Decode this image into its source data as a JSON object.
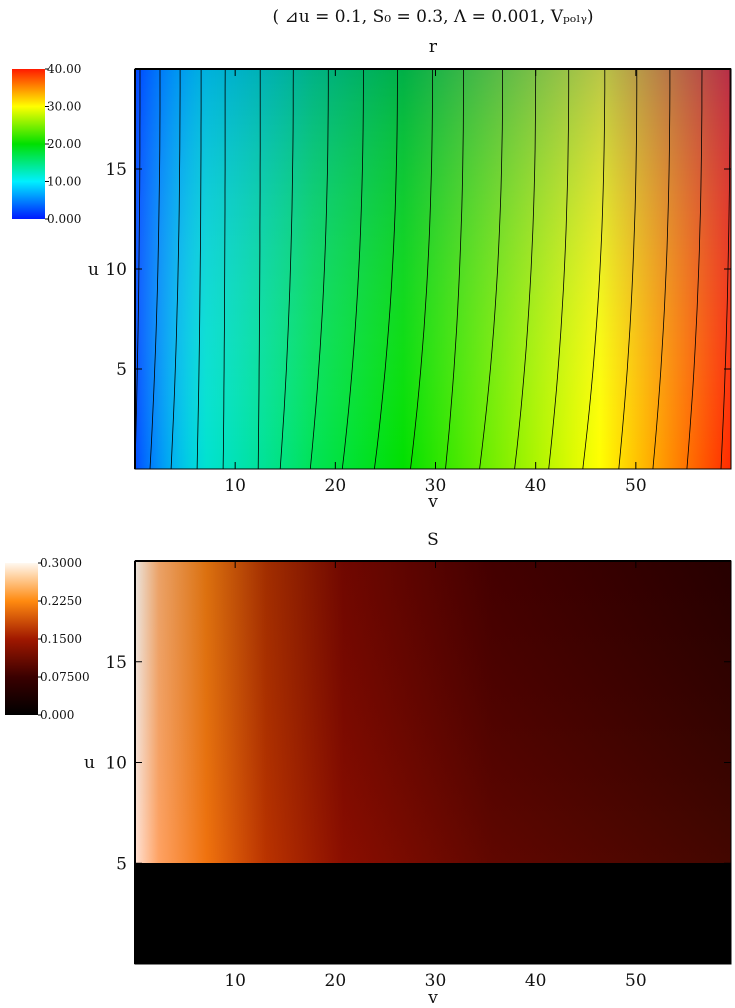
{
  "figure": {
    "suptitle": "( ⊿u = 0.1, S₀ = 0.3, Λ = 0.001, Vₚₒₗᵧ)"
  },
  "chart_data": [
    {
      "type": "heatmap",
      "title": "r",
      "xlabel": "v",
      "ylabel": "u",
      "xlim": [
        0,
        59.5
      ],
      "ylim": [
        0,
        20
      ],
      "xticks": [
        10,
        20,
        30,
        40,
        50
      ],
      "yticks": [
        5,
        10,
        15
      ],
      "colormap": "rainbow",
      "colors": [
        "#0019ff",
        "#00f0ff",
        "#00e000",
        "#ffff00",
        "#ff1a00"
      ],
      "colorbar": {
        "min": 0,
        "max": 40,
        "ticks": [
          {
            "value": 0,
            "label": "0.000"
          },
          {
            "value": 10,
            "label": "10.00"
          },
          {
            "value": 20,
            "label": "20.00"
          },
          {
            "value": 30,
            "label": "30.00"
          },
          {
            "value": 40,
            "label": "40.00"
          }
        ]
      },
      "contour_lines": [
        {
          "r": 2,
          "v_bottom": 0,
          "v_top": 0.5
        },
        {
          "r": 4,
          "v_bottom": 1.5,
          "v_top": 2.5
        },
        {
          "r": 6,
          "v_bottom": 3.6,
          "v_top": 4.5
        },
        {
          "r": 8,
          "v_bottom": 6.2,
          "v_top": 6.6
        },
        {
          "r": 10,
          "v_bottom": 8.8,
          "v_top": 9.0
        },
        {
          "r": 12,
          "v_bottom": 12.3,
          "v_top": 12.5
        },
        {
          "r": 14,
          "v_bottom": 14.5,
          "v_top": 15.8
        },
        {
          "r": 16,
          "v_bottom": 17.5,
          "v_top": 19.3
        },
        {
          "r": 18,
          "v_bottom": 20.7,
          "v_top": 22.8
        },
        {
          "r": 20,
          "v_bottom": 23.9,
          "v_top": 26.2
        },
        {
          "r": 22,
          "v_bottom": 27.5,
          "v_top": 29.7
        },
        {
          "r": 24,
          "v_bottom": 31.0,
          "v_top": 32.8
        },
        {
          "r": 26,
          "v_bottom": 34.4,
          "v_top": 36.7
        },
        {
          "r": 28,
          "v_bottom": 37.9,
          "v_top": 40.0
        },
        {
          "r": 30,
          "v_bottom": 41.3,
          "v_top": 43.3
        },
        {
          "r": 32,
          "v_bottom": 44.7,
          "v_top": 46.9
        },
        {
          "r": 34,
          "v_bottom": 48.3,
          "v_top": 50.1
        },
        {
          "r": 36,
          "v_bottom": 51.7,
          "v_top": 53.4
        },
        {
          "r": 38,
          "v_bottom": 55.1,
          "v_top": 56.6
        },
        {
          "r": 40,
          "v_bottom": 58.5,
          "v_top": 59.4
        }
      ]
    },
    {
      "type": "heatmap",
      "title": "S",
      "xlabel": "v",
      "ylabel": "u",
      "xlim": [
        0,
        59.5
      ],
      "ylim": [
        0,
        20
      ],
      "xticks": [
        10,
        20,
        30,
        40,
        50
      ],
      "yticks": [
        5,
        10,
        15
      ],
      "colormap": "hot",
      "colors": [
        "#000000",
        "#6a0000",
        "#ff8a10",
        "#fff8f0"
      ],
      "colorbar": {
        "min": 0,
        "max": 0.3,
        "ticks": [
          {
            "value": 0,
            "label": "0.000"
          },
          {
            "value": 0.075,
            "label": "0.07500"
          },
          {
            "value": 0.15,
            "label": "0.1500"
          },
          {
            "value": 0.225,
            "label": "0.2250"
          },
          {
            "value": 0.3,
            "label": "0.3000"
          }
        ]
      },
      "regions": [
        {
          "u_range": [
            0,
            5
          ],
          "value": 0
        },
        {
          "u_range": [
            5,
            20
          ],
          "value_at_v0": 0.3,
          "value_at_vmax": 0.03
        }
      ]
    }
  ]
}
